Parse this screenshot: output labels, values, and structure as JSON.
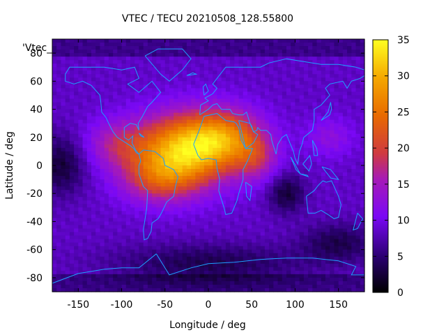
{
  "chart_data": {
    "type": "heatmap",
    "title": "VTEC / TECU 20210508_128.55800",
    "xlabel": "Longitude / deg",
    "ylabel": "Latitude / deg",
    "legend_key": "'Vtec_",
    "xlim": [
      -180,
      180
    ],
    "ylim": [
      -90,
      90
    ],
    "xticks": [
      -150,
      -100,
      -50,
      0,
      50,
      100,
      150
    ],
    "yticks": [
      -80,
      -60,
      -40,
      -20,
      0,
      20,
      40,
      60,
      80
    ],
    "colorbar": {
      "min": 0,
      "max": 35,
      "ticks": [
        0,
        5,
        10,
        15,
        20,
        25,
        30,
        35
      ]
    },
    "grid_step_deg": {
      "lon": 5,
      "lat": 2.5
    },
    "field_model": {
      "background": 8.5,
      "peaks": [
        {
          "lon": -30,
          "lat": 10,
          "amp": 22,
          "sigma_lon": 38,
          "sigma_lat": 18
        },
        {
          "lon": 20,
          "lat": 20,
          "amp": 14,
          "sigma_lon": 30,
          "sigma_lat": 14
        },
        {
          "lon": -105,
          "lat": 15,
          "amp": 7,
          "sigma_lon": 25,
          "sigma_lat": 12
        },
        {
          "lon": -60,
          "lat": -10,
          "amp": 8,
          "sigma_lon": 30,
          "sigma_lat": 12
        },
        {
          "lon": 55,
          "lat": 5,
          "amp": 7,
          "sigma_lon": 18,
          "sigma_lat": 12
        },
        {
          "lon": 140,
          "lat": 20,
          "amp": 4,
          "sigma_lon": 20,
          "sigma_lat": 10
        }
      ],
      "lows": [
        {
          "lon": -170,
          "lat": 0,
          "amp": 6,
          "sigma_lon": 20,
          "sigma_lat": 15
        },
        {
          "lon": 90,
          "lat": -20,
          "amp": 6,
          "sigma_lon": 15,
          "sigma_lat": 10
        },
        {
          "lon": 0,
          "lat": -70,
          "amp": 5,
          "sigma_lon": 80,
          "sigma_lat": 10
        },
        {
          "lon": 150,
          "lat": -55,
          "amp": 5,
          "sigma_lon": 30,
          "sigma_lat": 10
        }
      ]
    },
    "coastline_color": "#1ea0ff",
    "coastlines": [
      [
        [
          -165,
          65
        ],
        [
          -160,
          70
        ],
        [
          -140,
          70
        ],
        [
          -120,
          70
        ],
        [
          -100,
          68
        ],
        [
          -85,
          70
        ],
        [
          -80,
          62
        ],
        [
          -93,
          58
        ],
        [
          -80,
          52
        ],
        [
          -65,
          60
        ],
        [
          -55,
          52
        ],
        [
          -65,
          45
        ],
        [
          -70,
          42
        ],
        [
          -76,
          35
        ],
        [
          -81,
          30
        ],
        [
          -80,
          25
        ],
        [
          -83,
          29
        ],
        [
          -90,
          30
        ],
        [
          -97,
          27
        ],
        [
          -97,
          20
        ],
        [
          -92,
          18
        ],
        [
          -87,
          21
        ],
        [
          -88,
          16
        ],
        [
          -84,
          11
        ],
        [
          -80,
          8
        ],
        [
          -83,
          9
        ],
        [
          -86,
          12
        ],
        [
          -90,
          14
        ],
        [
          -95,
          16
        ],
        [
          -105,
          20
        ],
        [
          -110,
          24
        ],
        [
          -115,
          30
        ],
        [
          -118,
          34
        ],
        [
          -123,
          38
        ],
        [
          -124,
          45
        ],
        [
          -125,
          50
        ],
        [
          -135,
          57
        ],
        [
          -145,
          60
        ],
        [
          -155,
          58
        ],
        [
          -165,
          60
        ],
        [
          -165,
          65
        ]
      ],
      [
        [
          -80,
          8
        ],
        [
          -75,
          11
        ],
        [
          -62,
          10
        ],
        [
          -52,
          5
        ],
        [
          -50,
          0
        ],
        [
          -40,
          -3
        ],
        [
          -35,
          -8
        ],
        [
          -38,
          -15
        ],
        [
          -40,
          -22
        ],
        [
          -48,
          -26
        ],
        [
          -55,
          -35
        ],
        [
          -58,
          -38
        ],
        [
          -65,
          -41
        ],
        [
          -66,
          -47
        ],
        [
          -70,
          -52
        ],
        [
          -74,
          -53
        ],
        [
          -75,
          -46
        ],
        [
          -73,
          -38
        ],
        [
          -71,
          -30
        ],
        [
          -70,
          -18
        ],
        [
          -75,
          -15
        ],
        [
          -80,
          -6
        ],
        [
          -80,
          0
        ],
        [
          -78,
          3
        ],
        [
          -80,
          8
        ]
      ],
      [
        [
          -17,
          15
        ],
        [
          -10,
          26
        ],
        [
          -5,
          35
        ],
        [
          10,
          37
        ],
        [
          20,
          32
        ],
        [
          30,
          31
        ],
        [
          32,
          30
        ],
        [
          35,
          27
        ],
        [
          38,
          18
        ],
        [
          43,
          12
        ],
        [
          51,
          12
        ],
        [
          45,
          3
        ],
        [
          40,
          -3
        ],
        [
          40,
          -10
        ],
        [
          35,
          -20
        ],
        [
          33,
          -25
        ],
        [
          27,
          -34
        ],
        [
          20,
          -35
        ],
        [
          18,
          -30
        ],
        [
          12,
          -18
        ],
        [
          13,
          -10
        ],
        [
          10,
          -2
        ],
        [
          9,
          4
        ],
        [
          0,
          5
        ],
        [
          -8,
          4
        ],
        [
          -12,
          7
        ],
        [
          -17,
          15
        ]
      ],
      [
        [
          -10,
          36
        ],
        [
          -9,
          43
        ],
        [
          0,
          46
        ],
        [
          -4,
          48
        ],
        [
          5,
          51
        ],
        [
          10,
          55
        ],
        [
          5,
          58
        ],
        [
          10,
          62
        ],
        [
          20,
          70
        ],
        [
          40,
          70
        ],
        [
          60,
          70
        ],
        [
          70,
          73
        ],
        [
          90,
          76
        ],
        [
          110,
          74
        ],
        [
          130,
          72
        ],
        [
          150,
          72
        ],
        [
          170,
          70
        ],
        [
          180,
          68
        ]
      ],
      [
        [
          180,
          64
        ],
        [
          175,
          62
        ],
        [
          165,
          60
        ],
        [
          160,
          55
        ],
        [
          155,
          60
        ],
        [
          140,
          58
        ],
        [
          135,
          55
        ],
        [
          140,
          50
        ],
        [
          130,
          43
        ],
        [
          122,
          40
        ],
        [
          122,
          32
        ],
        [
          120,
          25
        ],
        [
          110,
          20
        ],
        [
          108,
          15
        ],
        [
          105,
          10
        ],
        [
          103,
          1
        ],
        [
          100,
          5
        ],
        [
          98,
          10
        ],
        [
          94,
          16
        ],
        [
          90,
          22
        ],
        [
          85,
          20
        ],
        [
          80,
          15
        ],
        [
          78,
          8
        ],
        [
          73,
          18
        ],
        [
          72,
          22
        ],
        [
          67,
          25
        ],
        [
          60,
          25
        ],
        [
          57,
          27
        ],
        [
          56,
          25
        ],
        [
          52,
          24
        ],
        [
          50,
          28
        ],
        [
          48,
          30
        ],
        [
          44,
          38
        ],
        [
          40,
          36
        ],
        [
          35,
          36
        ],
        [
          28,
          37
        ],
        [
          25,
          40
        ],
        [
          20,
          40
        ],
        [
          15,
          40
        ],
        [
          10,
          44
        ],
        [
          5,
          43
        ],
        [
          0,
          40
        ],
        [
          -10,
          36
        ]
      ],
      [
        [
          35,
          32
        ],
        [
          43,
          12
        ],
        [
          52,
          16
        ],
        [
          57,
          22
        ],
        [
          52,
          24
        ],
        [
          48,
          30
        ],
        [
          35,
          32
        ]
      ],
      [
        [
          113,
          -22
        ],
        [
          115,
          -34
        ],
        [
          123,
          -34
        ],
        [
          130,
          -32
        ],
        [
          138,
          -35
        ],
        [
          145,
          -38
        ],
        [
          150,
          -37
        ],
        [
          153,
          -28
        ],
        [
          150,
          -22
        ],
        [
          145,
          -15
        ],
        [
          142,
          -11
        ],
        [
          136,
          -12
        ],
        [
          132,
          -11
        ],
        [
          127,
          -14
        ],
        [
          122,
          -18
        ],
        [
          113,
          -22
        ]
      ],
      [
        [
          -60,
          -63
        ],
        [
          -45,
          -78
        ],
        [
          -20,
          -73
        ],
        [
          0,
          -70
        ],
        [
          30,
          -69
        ],
        [
          60,
          -67
        ],
        [
          90,
          -66
        ],
        [
          120,
          -66
        ],
        [
          150,
          -68
        ],
        [
          170,
          -72
        ],
        [
          165,
          -78
        ],
        [
          180,
          -78
        ]
      ],
      [
        [
          -180,
          -84
        ],
        [
          -150,
          -77
        ],
        [
          -120,
          -74
        ],
        [
          -100,
          -73
        ],
        [
          -80,
          -73
        ],
        [
          -60,
          -63
        ]
      ],
      [
        [
          -73,
          78
        ],
        [
          -58,
          83
        ],
        [
          -30,
          83
        ],
        [
          -20,
          76
        ],
        [
          -30,
          68
        ],
        [
          -45,
          60
        ],
        [
          -55,
          65
        ],
        [
          -73,
          78
        ]
      ],
      [
        [
          95,
          6
        ],
        [
          106,
          -6
        ],
        [
          101,
          -3
        ],
        [
          95,
          6
        ]
      ],
      [
        [
          106,
          -6
        ],
        [
          115,
          -8
        ],
        [
          114,
          -7
        ],
        [
          106,
          -6
        ]
      ],
      [
        [
          109,
          1
        ],
        [
          117,
          7
        ],
        [
          119,
          1
        ],
        [
          116,
          -4
        ],
        [
          109,
          1
        ]
      ],
      [
        [
          131,
          -1
        ],
        [
          141,
          -3
        ],
        [
          150,
          -10
        ],
        [
          141,
          -9
        ],
        [
          131,
          -1
        ]
      ],
      [
        [
          130,
          32
        ],
        [
          135,
          34
        ],
        [
          140,
          36
        ],
        [
          142,
          40
        ],
        [
          141,
          45
        ],
        [
          138,
          38
        ],
        [
          130,
          32
        ]
      ],
      [
        [
          120,
          18
        ],
        [
          125,
          12
        ],
        [
          126,
          7
        ],
        [
          122,
          7
        ],
        [
          120,
          18
        ]
      ],
      [
        [
          -25,
          64
        ],
        [
          -14,
          65
        ],
        [
          -18,
          66
        ],
        [
          -25,
          64
        ]
      ],
      [
        [
          -5,
          50
        ],
        [
          0,
          53
        ],
        [
          -3,
          58
        ],
        [
          -6,
          56
        ],
        [
          -5,
          50
        ]
      ],
      [
        [
          43,
          -12
        ],
        [
          50,
          -15
        ],
        [
          48,
          -25
        ],
        [
          44,
          -22
        ],
        [
          43,
          -12
        ]
      ],
      [
        [
          172,
          -34
        ],
        [
          178,
          -38
        ],
        [
          172,
          -45
        ],
        [
          167,
          -46
        ],
        [
          172,
          -34
        ]
      ],
      [
        [
          -80,
          23
        ],
        [
          -74,
          20
        ],
        [
          -78,
          21
        ],
        [
          -80,
          23
        ]
      ]
    ]
  }
}
